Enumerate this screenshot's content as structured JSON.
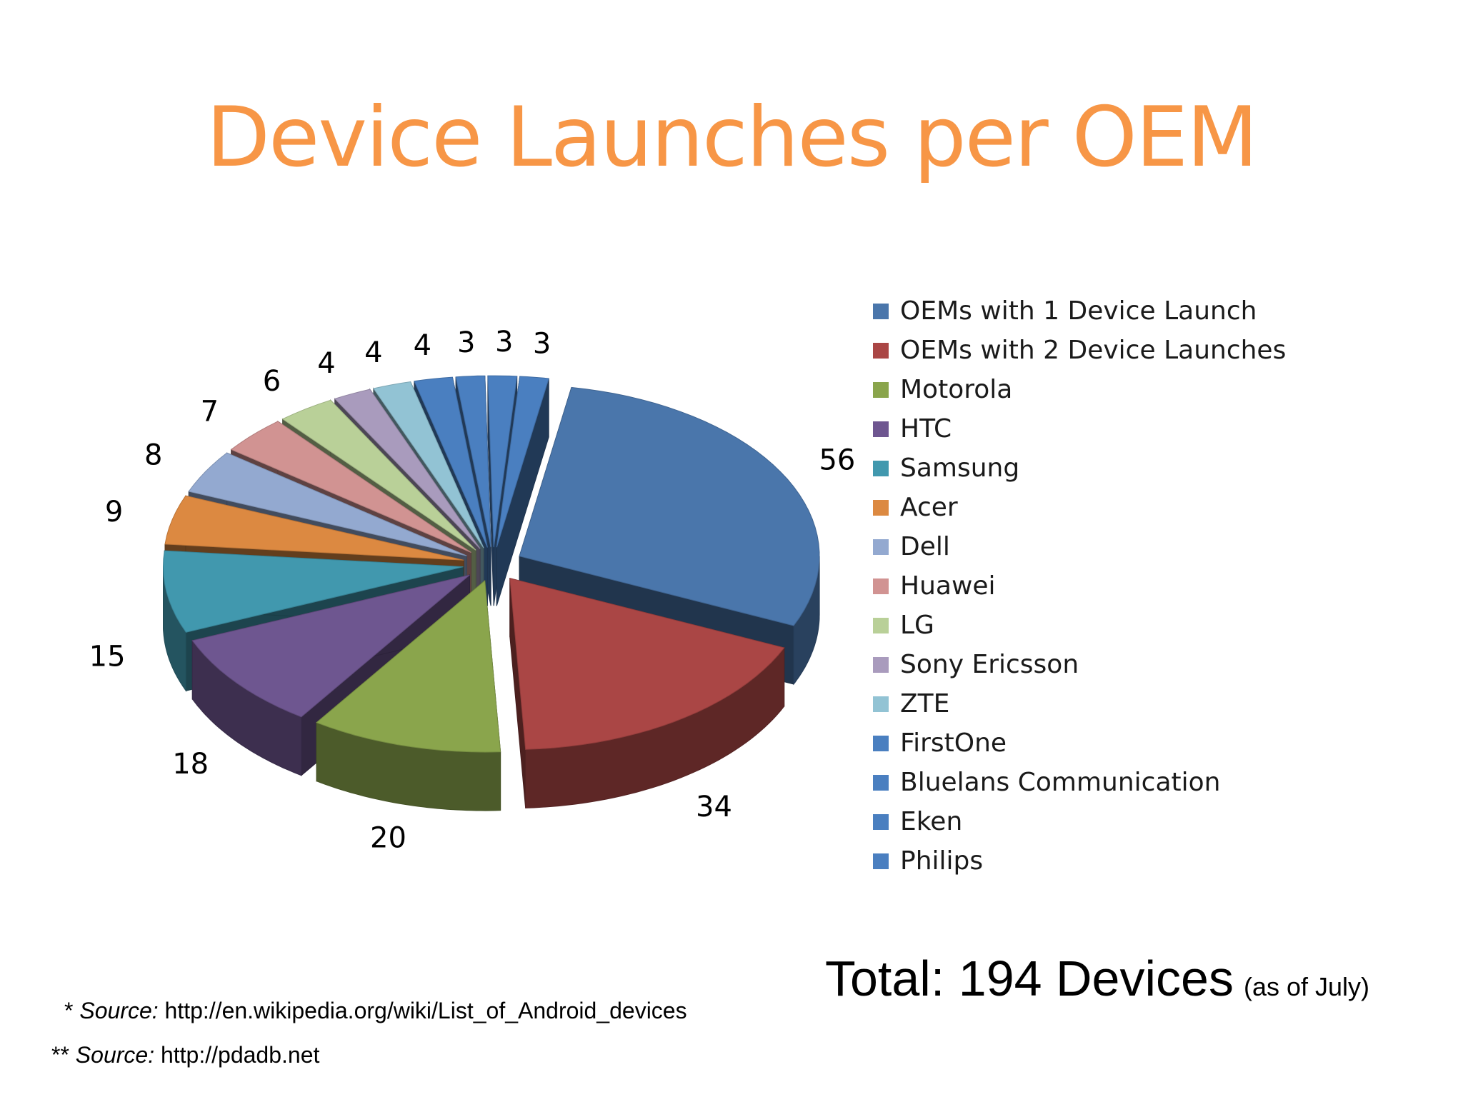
{
  "title": "Device Launches per OEM",
  "chart_data": {
    "type": "pie",
    "style": "3d-exploded",
    "title": "Device Launches per OEM",
    "legend_position": "right",
    "series": [
      {
        "values": [
          56,
          34,
          20,
          18,
          15,
          9,
          8,
          7,
          6,
          4,
          4,
          4,
          3,
          3,
          3
        ]
      }
    ],
    "categories": [
      "OEMs with 1 Device Launch",
      "OEMs with 2 Device Launches",
      "Motorola",
      "HTC",
      "Samsung",
      "Acer",
      "Dell",
      "Huawei",
      "LG",
      "Sony Ericsson",
      "ZTE",
      "FirstOne",
      "Bluelans Communication",
      "Eken",
      "Philips"
    ],
    "data_labels": [
      "56",
      "34",
      "20",
      "18",
      "15",
      "9",
      "8",
      "7",
      "6",
      "4",
      "4",
      "4",
      "3",
      "3",
      "3"
    ],
    "colors": [
      "#4a76ab",
      "#aa4645",
      "#8aa54c",
      "#6e5690",
      "#4198ae",
      "#dc8941",
      "#93a9d0",
      "#d19392",
      "#b9d098",
      "#a99bbd",
      "#92c3d4",
      "#4a7fc0",
      "#4a7fc0",
      "#4a7fc0",
      "#4a7fc0"
    ]
  },
  "total": {
    "main": "Total: 194 Devices",
    "note": "(as of July)"
  },
  "sources": [
    {
      "prefix": "* ",
      "label": "Source:",
      "url": " http://en.wikipedia.org/wiki/List_of_Android_devices"
    },
    {
      "prefix": "** ",
      "label": "Source:",
      "url": " http://pdadb.net"
    }
  ]
}
